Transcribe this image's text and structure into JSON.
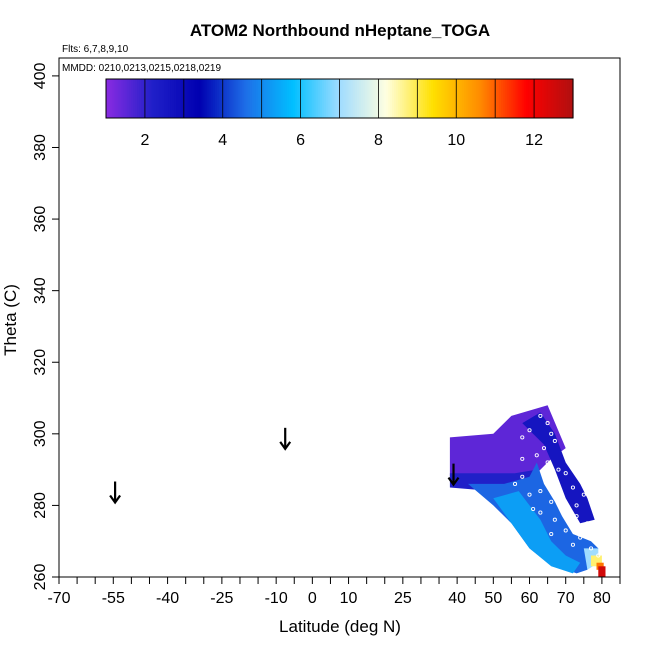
{
  "chart_data": {
    "type": "heatmap",
    "title": "ATOM2 Northbound nHeptane_TOGA",
    "subtitle_flights": "Flts: 6,7,8,9,10",
    "subtitle_dates": "MMDD: 0210,0213,0215,0218,0219",
    "xlabel": "Latitude (deg N)",
    "ylabel": "Theta (C)",
    "xlim": [
      -70,
      85
    ],
    "ylim": [
      260,
      405
    ],
    "x_ticks": [
      -70,
      -55,
      -40,
      -25,
      -10,
      0,
      10,
      25,
      40,
      50,
      60,
      70,
      80
    ],
    "x_tick_labels": [
      "-70",
      "-55",
      "-40",
      "-25",
      "-10",
      "0",
      "10",
      "25",
      "40",
      "50",
      "60",
      "70",
      "80"
    ],
    "y_ticks": [
      260,
      280,
      300,
      320,
      340,
      360,
      380,
      400
    ],
    "y_tick_labels": [
      "260",
      "280",
      "300",
      "320",
      "340",
      "360",
      "380",
      "400"
    ],
    "colorbar": {
      "range": [
        1,
        13
      ],
      "ticks": [
        2,
        4,
        6,
        8,
        10,
        12
      ],
      "tick_labels": [
        "2",
        "4",
        "6",
        "8",
        "10",
        "12"
      ],
      "stops": [
        "#8a2be2",
        "#2020c8",
        "#0000b0",
        "#1e6fe8",
        "#00bfff",
        "#a0dcff",
        "#ffffe0",
        "#ffe000",
        "#ff8c00",
        "#ff0000",
        "#b01010"
      ]
    },
    "arrows": [
      {
        "lat": -54.5,
        "theta": 285
      },
      {
        "lat": -7.5,
        "theta": 300
      },
      {
        "lat": 39,
        "theta": 290
      }
    ],
    "field_polygons": [
      {
        "level": 1.5,
        "points": [
          [
            38,
            299
          ],
          [
            50,
            300
          ],
          [
            55,
            305
          ],
          [
            65,
            308
          ],
          [
            70,
            296
          ],
          [
            66,
            293
          ],
          [
            62,
            289
          ],
          [
            56,
            288
          ],
          [
            52,
            288
          ],
          [
            38,
            288
          ]
        ]
      },
      {
        "level": 2.2,
        "points": [
          [
            38,
            289
          ],
          [
            56,
            289
          ],
          [
            62,
            290
          ],
          [
            60,
            286
          ],
          [
            50,
            284
          ],
          [
            38,
            285
          ]
        ]
      },
      {
        "level": 2.6,
        "points": [
          [
            58,
            303
          ],
          [
            63,
            306
          ],
          [
            67,
            300
          ],
          [
            70,
            292
          ],
          [
            74,
            286
          ],
          [
            76,
            282
          ],
          [
            78,
            276
          ],
          [
            74,
            275
          ],
          [
            70,
            282
          ],
          [
            67,
            290
          ],
          [
            64,
            297
          ]
        ]
      },
      {
        "level": 4.5,
        "points": [
          [
            43,
            286
          ],
          [
            53,
            286
          ],
          [
            60,
            288
          ],
          [
            62,
            292
          ],
          [
            64,
            286
          ],
          [
            67,
            281
          ],
          [
            69,
            277
          ],
          [
            72,
            272
          ],
          [
            77,
            270
          ],
          [
            79,
            268
          ],
          [
            76,
            262
          ],
          [
            73,
            261
          ],
          [
            65,
            264
          ],
          [
            60,
            268
          ],
          [
            55,
            275
          ],
          [
            50,
            280
          ]
        ]
      },
      {
        "level": 5.3,
        "points": [
          [
            50,
            282
          ],
          [
            57,
            284
          ],
          [
            60,
            280
          ],
          [
            63,
            276
          ],
          [
            66,
            270
          ],
          [
            70,
            266
          ],
          [
            74,
            264
          ],
          [
            72,
            261
          ],
          [
            66,
            263
          ],
          [
            60,
            268
          ],
          [
            55,
            275
          ]
        ]
      },
      {
        "level": 7,
        "points": [
          [
            75,
            268
          ],
          [
            79,
            268
          ],
          [
            79,
            264
          ],
          [
            76,
            262
          ]
        ]
      },
      {
        "level": 8.8,
        "points": [
          [
            77,
            266
          ],
          [
            80,
            266
          ],
          [
            80,
            263
          ],
          [
            77,
            263
          ]
        ]
      },
      {
        "level": 10.8,
        "points": [
          [
            78.5,
            264
          ],
          [
            80.5,
            264
          ],
          [
            80.5,
            262
          ],
          [
            78.5,
            262
          ]
        ]
      },
      {
        "level": 12.5,
        "points": [
          [
            79,
            263
          ],
          [
            81,
            263
          ],
          [
            81,
            260
          ],
          [
            79,
            260
          ]
        ]
      }
    ],
    "observations": [
      [
        63,
        305
      ],
      [
        65,
        303
      ],
      [
        66,
        300
      ],
      [
        67,
        298
      ],
      [
        64,
        296
      ],
      [
        60,
        301
      ],
      [
        58,
        299
      ],
      [
        62,
        294
      ],
      [
        65,
        292
      ],
      [
        68,
        290
      ],
      [
        70,
        289
      ],
      [
        66,
        287
      ],
      [
        72,
        285
      ],
      [
        63,
        284
      ],
      [
        58,
        288
      ],
      [
        60,
        283
      ],
      [
        56,
        286
      ],
      [
        66,
        281
      ],
      [
        69,
        279
      ],
      [
        73,
        277
      ],
      [
        76,
        275
      ],
      [
        63,
        278
      ],
      [
        67,
        276
      ],
      [
        70,
        273
      ],
      [
        74,
        271
      ],
      [
        77,
        268
      ],
      [
        79,
        266
      ],
      [
        66,
        272
      ],
      [
        72,
        269
      ],
      [
        61,
        279
      ],
      [
        73,
        280
      ],
      [
        75,
        283
      ],
      [
        64,
        290
      ],
      [
        58,
        293
      ]
    ]
  }
}
